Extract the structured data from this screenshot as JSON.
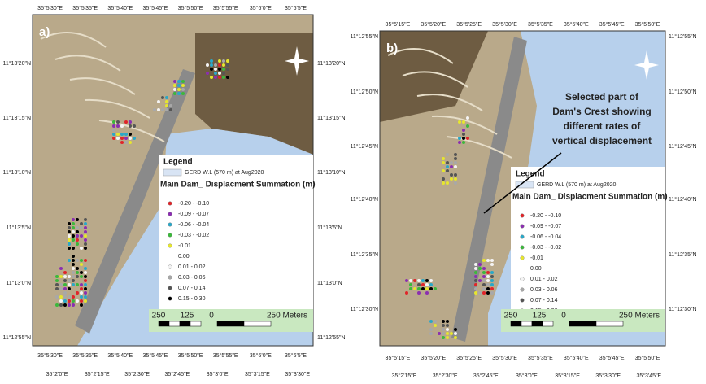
{
  "panels": [
    {
      "label": "a)",
      "lon_top": [
        "35°5'30\"E",
        "35°5'35\"E",
        "35°5'40\"E",
        "35°5'45\"E",
        "35°5'50\"E",
        "35°5'55\"E",
        "35°6'0\"E",
        "35°6'5\"E"
      ],
      "lon_bottom": [
        "35°5'30\"E",
        "35°5'35\"E",
        "35°5'40\"E",
        "35°5'45\"E",
        "35°5'50\"E",
        "35°5'55\"E",
        "35°6'0\"E",
        "35°6'5\"E"
      ],
      "lon_extra": [
        "35°2'0\"E",
        "35°2'15\"E",
        "35°2'30\"E",
        "35°2'45\"E",
        "35°3'0\"E",
        "35°3'15\"E",
        "35°3'30\"E"
      ],
      "lat_left": [
        "11°13'20\"N",
        "11°13'15\"N",
        "11°13'10\"N",
        "11°13'5\"N",
        "11°13'0\"N",
        "11°12'55\"N"
      ],
      "lat_right": [
        "11°13'20\"N",
        "11°13'15\"N",
        "11°13'10\"N",
        "11°13'5\"N",
        "11°13'0\"N",
        "11°12'55\"N"
      ],
      "scale": [
        "250",
        "125",
        "0",
        "250 Meters"
      ]
    },
    {
      "label": "b)",
      "lon_top": [
        "35°5'15\"E",
        "35°5'20\"E",
        "35°5'25\"E",
        "35°5'30\"E",
        "35°5'35\"E",
        "35°5'40\"E",
        "35°5'45\"E",
        "35°5'50\"E"
      ],
      "lon_bottom": [
        "35°5'15\"E",
        "35°5'20\"E",
        "35°5'25\"E",
        "35°5'30\"E",
        "35°5'35\"E",
        "35°5'40\"E",
        "35°5'45\"E",
        "35°5'50\"E"
      ],
      "lon_extra": [
        "35°2'15\"E",
        "35°2'30\"E",
        "35°2'45\"E",
        "35°3'0\"E",
        "35°3'15\"E",
        "35°3'30\"E",
        "35°3'45\"E"
      ],
      "lat_left": [
        "11°12'55\"N",
        "11°12'50\"N",
        "11°12'45\"N",
        "11°12'40\"N",
        "11°12'35\"N",
        "11°12'30\"N"
      ],
      "lat_right": [
        "11°12'55\"N",
        "11°12'50\"N",
        "11°12'45\"N",
        "11°12'40\"N",
        "11°12'35\"N",
        "11°12'30\"N"
      ],
      "scale": [
        "250",
        "125",
        "0",
        "250 Meters"
      ],
      "annotation": [
        "Selected part of",
        "Dam's Crest showing",
        "different rates of",
        "vertical displacement"
      ]
    }
  ],
  "legend": {
    "title": "Legend",
    "water": "GERD W.L (570 m) at Aug2020",
    "heading": "Main Dam_ Displacment Summation (m)",
    "classes": [
      {
        "label": "-0.20 - -0.10",
        "color": "#e0252a"
      },
      {
        "label": "-0.09 - -0.07",
        "color": "#8b2fb0"
      },
      {
        "label": "-0.06 - -0.04",
        "color": "#2aa8c8"
      },
      {
        "label": "-0.03 - -0.02",
        "color": "#3cb83c"
      },
      {
        "label": "-0.01",
        "color": "#e6e62e"
      },
      {
        "label": "0.00"
      },
      {
        "label": "0.01 - 0.02",
        "color": "#f4f4f4"
      },
      {
        "label": "0.03 - 0.06",
        "color": "#a8a8a8"
      },
      {
        "label": "0.07 - 0.14",
        "color": "#555555"
      },
      {
        "label": "0.15 - 0.30",
        "color": "#000000"
      }
    ]
  }
}
